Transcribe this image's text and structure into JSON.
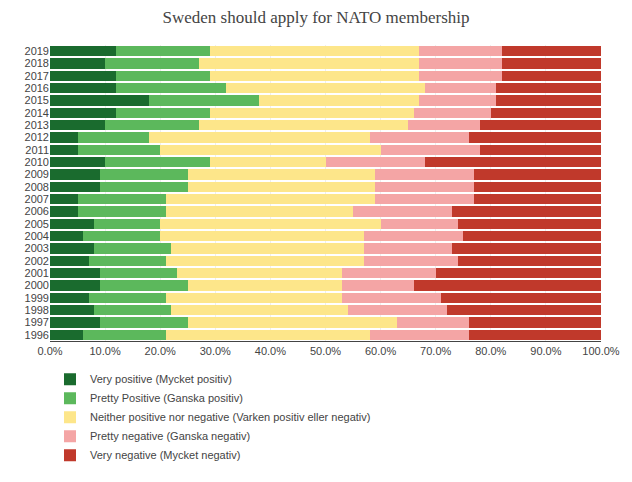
{
  "chart_data": {
    "type": "bar",
    "title": "Sweden should apply for NATO membership",
    "orientation": "horizontal",
    "stacked": true,
    "grid": true,
    "legend": "bottom",
    "categories": [
      "2019",
      "2018",
      "2017",
      "2016",
      "2015",
      "2014",
      "2013",
      "2012",
      "2011",
      "2010",
      "2009",
      "2008",
      "2007",
      "2006",
      "2005",
      "2004",
      "2003",
      "2002",
      "2001",
      "2000",
      "1999",
      "1998",
      "1997",
      "1996"
    ],
    "series": [
      {
        "name": "Very positive (Mycket positiv)",
        "color": "#1a6b2e",
        "values": [
          12,
          10,
          12,
          12,
          18,
          12,
          10,
          5,
          5,
          10,
          9,
          9,
          5,
          5,
          8,
          6,
          8,
          7,
          9,
          9,
          7,
          8,
          9,
          6
        ]
      },
      {
        "name": "Pretty Positive (Ganska positiv)",
        "color": "#5cb85c",
        "values": [
          17,
          17,
          17,
          20,
          20,
          17,
          17,
          13,
          15,
          19,
          16,
          16,
          16,
          16,
          12,
          14,
          14,
          14,
          14,
          16,
          14,
          14,
          16,
          15
        ]
      },
      {
        "name": "Neither positive nor negative (Varken positiv eller negativ)",
        "color": "#fde68a",
        "values": [
          38,
          40,
          38,
          36,
          29,
          37,
          38,
          40,
          40,
          21,
          34,
          34,
          38,
          34,
          40,
          37,
          35,
          36,
          30,
          28,
          32,
          32,
          38,
          37
        ]
      },
      {
        "name": "Pretty negative (Ganska negativ)",
        "color": "#f4a5a5",
        "values": [
          15,
          15,
          15,
          13,
          14,
          14,
          13,
          18,
          18,
          18,
          18,
          18,
          18,
          18,
          14,
          18,
          16,
          17,
          17,
          13,
          18,
          18,
          13,
          18
        ]
      },
      {
        "name": "Very negative (Mycket negativ)",
        "color": "#c0392b",
        "values": [
          18,
          18,
          18,
          19,
          19,
          20,
          22,
          24,
          22,
          32,
          23,
          23,
          23,
          27,
          26,
          25,
          27,
          26,
          30,
          34,
          29,
          28,
          24,
          24
        ]
      }
    ],
    "xlim": [
      0,
      100
    ],
    "xticks": [
      {
        "value": 0,
        "label": "0.0%"
      },
      {
        "value": 10,
        "label": "10.0%"
      },
      {
        "value": 20,
        "label": "20.0%"
      },
      {
        "value": 30,
        "label": "30.0%"
      },
      {
        "value": 40,
        "label": "40.0%"
      },
      {
        "value": 50,
        "label": "50.0%"
      },
      {
        "value": 60,
        "label": "60.0%"
      },
      {
        "value": 70,
        "label": "70.0%"
      },
      {
        "value": 80,
        "label": "80.0%"
      },
      {
        "value": 90,
        "label": "90.0%"
      },
      {
        "value": 100,
        "label": "100.0%"
      }
    ]
  }
}
